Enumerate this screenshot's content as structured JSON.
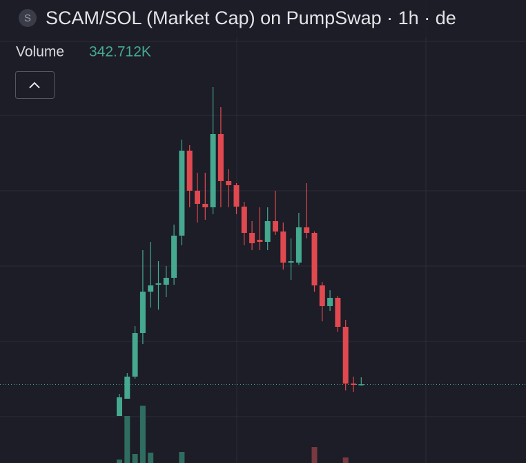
{
  "header": {
    "icon": "S",
    "title": "SCAM/SOL (Market Cap) on PumpSwap · 1h · de"
  },
  "legend": {
    "label": "Volume",
    "value": "342.712K"
  },
  "chart_data": {
    "type": "candlestick",
    "ylim": [
      0,
      670
    ],
    "open": [
      68,
      93,
      125,
      188,
      248,
      258,
      258,
      268,
      329,
      452,
      394,
      375,
      370,
      476,
      408,
      402,
      371,
      333,
      323,
      320,
      350,
      335,
      290,
      290,
      341,
      333,
      257,
      227,
      239,
      197,
      115,
      113
    ],
    "close": [
      95,
      125,
      188,
      248,
      257,
      260,
      268,
      329,
      452,
      394,
      375,
      370,
      476,
      408,
      402,
      371,
      333,
      318,
      320,
      350,
      335,
      290,
      292,
      341,
      333,
      257,
      227,
      239,
      197,
      115,
      113,
      114
    ],
    "high": [
      100,
      130,
      198,
      308,
      320,
      292,
      285,
      345,
      468,
      460,
      420,
      420,
      544,
      515,
      425,
      405,
      378,
      350,
      370,
      370,
      394,
      348,
      325,
      362,
      405,
      335,
      262,
      250,
      242,
      207,
      125,
      124
    ],
    "low": [
      68,
      93,
      122,
      172,
      225,
      222,
      240,
      258,
      315,
      370,
      348,
      352,
      360,
      370,
      370,
      360,
      315,
      308,
      308,
      308,
      330,
      280,
      265,
      287,
      325,
      248,
      205,
      220,
      190,
      105,
      103,
      112
    ],
    "volume": [
      5,
      68,
      13,
      83,
      15,
      0,
      0,
      0,
      16,
      0,
      0,
      0,
      0,
      0,
      0,
      0,
      0,
      0,
      0,
      0,
      0,
      0,
      0,
      0,
      0,
      23,
      0,
      0,
      0,
      8,
      0,
      0
    ],
    "volume_lim": [
      0,
      100
    ],
    "up_color": "#45a88f",
    "down_color": "#e0494f",
    "volume_up_color": "#2f6d60",
    "volume_down_color": "#7a3840"
  }
}
